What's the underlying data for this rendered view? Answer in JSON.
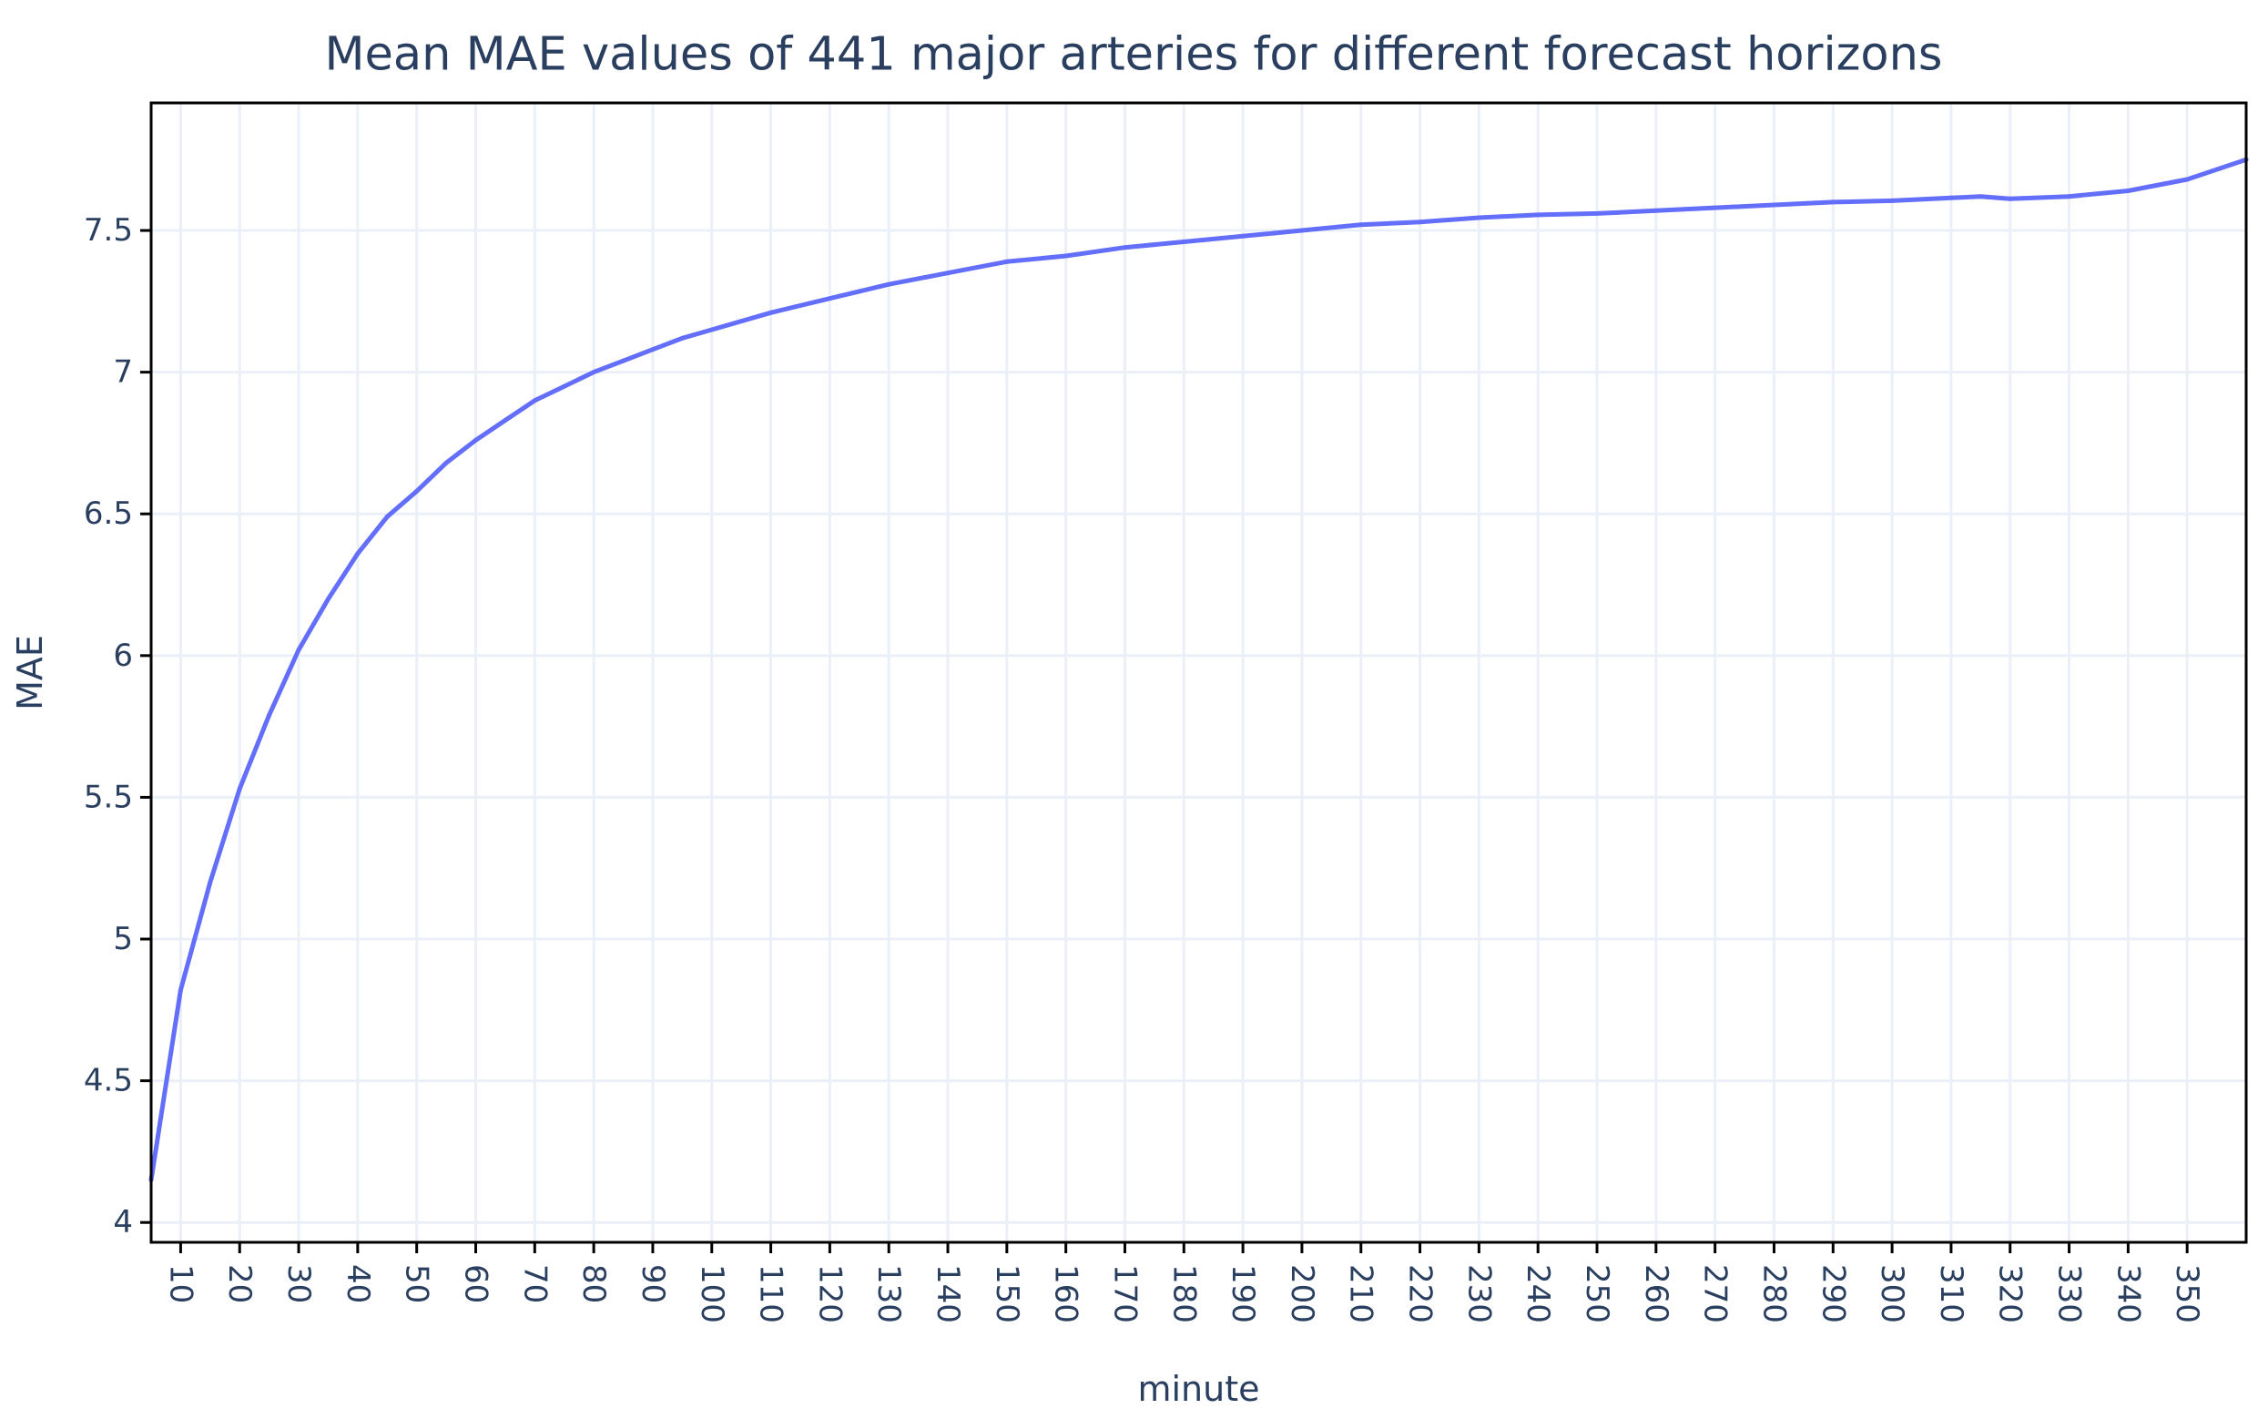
{
  "chart_data": {
    "type": "line",
    "title": "Mean MAE values of 441 major arteries for different forecast horizons",
    "xlabel": "minute",
    "ylabel": "MAE",
    "xlim": [
      5,
      360
    ],
    "ylim": [
      3.93,
      7.95
    ],
    "grid": true,
    "x_ticks": [
      10,
      20,
      30,
      40,
      50,
      60,
      70,
      80,
      90,
      100,
      110,
      120,
      130,
      140,
      150,
      160,
      170,
      180,
      190,
      200,
      210,
      220,
      230,
      240,
      250,
      260,
      270,
      280,
      290,
      300,
      310,
      320,
      330,
      340,
      350
    ],
    "y_ticks": [
      4,
      4.5,
      5,
      5.5,
      6,
      6.5,
      7,
      7.5
    ],
    "y_tick_labels": [
      "4",
      "4.5",
      "5",
      "5.5",
      "6",
      "6.5",
      "7",
      "7.5"
    ],
    "series": [
      {
        "name": "MAE",
        "color": "#636efa",
        "x": [
          5,
          10,
          15,
          20,
          25,
          30,
          35,
          40,
          45,
          50,
          55,
          60,
          65,
          70,
          75,
          80,
          85,
          90,
          95,
          100,
          110,
          120,
          130,
          140,
          150,
          160,
          170,
          180,
          190,
          200,
          210,
          220,
          230,
          240,
          250,
          260,
          270,
          280,
          290,
          300,
          310,
          315,
          320,
          330,
          340,
          350,
          360
        ],
        "values": [
          4.15,
          4.82,
          5.2,
          5.53,
          5.79,
          6.02,
          6.2,
          6.36,
          6.49,
          6.58,
          6.68,
          6.76,
          6.83,
          6.9,
          6.95,
          7.0,
          7.04,
          7.08,
          7.12,
          7.15,
          7.21,
          7.26,
          7.31,
          7.35,
          7.39,
          7.41,
          7.44,
          7.46,
          7.48,
          7.5,
          7.52,
          7.53,
          7.545,
          7.555,
          7.56,
          7.57,
          7.58,
          7.59,
          7.6,
          7.605,
          7.615,
          7.62,
          7.612,
          7.62,
          7.64,
          7.68,
          7.75
        ]
      }
    ]
  }
}
